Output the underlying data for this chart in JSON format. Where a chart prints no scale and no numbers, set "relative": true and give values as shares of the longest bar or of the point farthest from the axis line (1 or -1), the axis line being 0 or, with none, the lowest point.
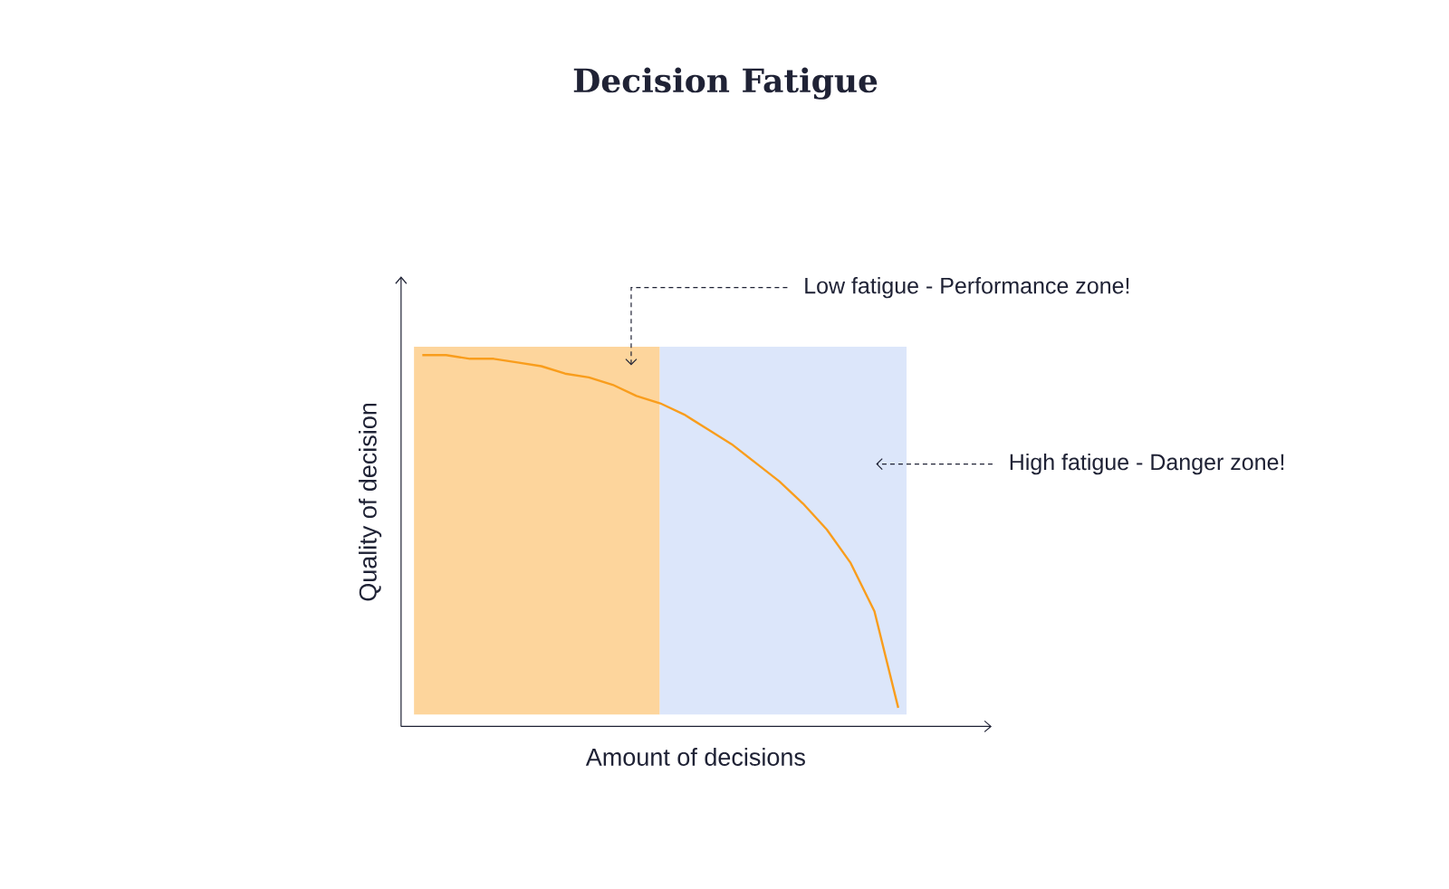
{
  "chart_data": {
    "type": "line",
    "title": "Decision Fatigue",
    "xlabel": "Amount of decisions",
    "ylabel": "Quality of decision",
    "relative": true,
    "categories": [
      null,
      null,
      null,
      null,
      null,
      null,
      null,
      null,
      null,
      null,
      null,
      null,
      null,
      null,
      null,
      null,
      null,
      null,
      null,
      null,
      null
    ],
    "series": [
      {
        "color": "#f99d1c",
        "values": [
          1.0,
          1.0,
          0.99,
          0.99,
          0.98,
          0.97,
          0.95,
          0.94,
          0.92,
          0.89,
          0.87,
          0.84,
          0.8,
          0.76,
          0.71,
          0.66,
          0.6,
          0.53,
          0.44,
          0.31,
          0.05
        ]
      }
    ],
    "annotations": [
      "Low fatigue - Performance zone!",
      "High fatigue - Danger zone!"
    ],
    "marker": "none",
    "line_style": "solid"
  }
}
